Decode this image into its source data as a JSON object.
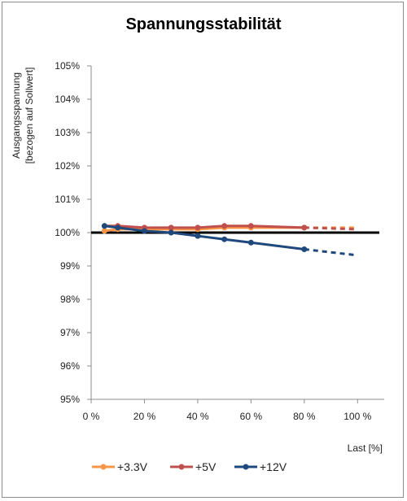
{
  "chart_data": {
    "type": "line",
    "title": "Spannungsstabilität",
    "ylabel_line1": "Ausgangsspannung",
    "ylabel_line2": "[bezogen auf Sollwert]",
    "xlabel": "Last [%]",
    "xlim": [
      0,
      110
    ],
    "ylim": [
      95,
      105
    ],
    "x_ticks": [
      0,
      20,
      40,
      60,
      80,
      100
    ],
    "x_tick_labels": [
      "0 %",
      "20 %",
      "40 %",
      "60 %",
      "80 %",
      "100 %"
    ],
    "y_ticks": [
      95,
      96,
      97,
      98,
      99,
      100,
      101,
      102,
      103,
      104,
      105
    ],
    "y_tick_labels": [
      "95%",
      "96%",
      "97%",
      "98%",
      "99%",
      "100%",
      "101%",
      "102%",
      "103%",
      "104%",
      "105%"
    ],
    "grid": false,
    "legend_position": "bottom",
    "reference_line": {
      "y": 100,
      "color": "#000000"
    },
    "series": [
      {
        "name": "+3.3V",
        "color": "#f79646",
        "x": [
          5,
          10,
          20,
          30,
          40,
          50,
          60,
          80
        ],
        "y": [
          100.05,
          100.1,
          100.1,
          100.1,
          100.1,
          100.15,
          100.15,
          100.15
        ],
        "projected": {
          "x": [
            80,
            100
          ],
          "y": [
            100.15,
            100.15
          ]
        }
      },
      {
        "name": "+5V",
        "color": "#c0504d",
        "x": [
          5,
          10,
          20,
          30,
          40,
          50,
          60,
          80
        ],
        "y": [
          100.2,
          100.2,
          100.15,
          100.15,
          100.15,
          100.2,
          100.2,
          100.15
        ],
        "projected": {
          "x": [
            80,
            100
          ],
          "y": [
            100.15,
            100.1
          ]
        }
      },
      {
        "name": "+12V",
        "color": "#1f497d",
        "x": [
          5,
          10,
          20,
          30,
          40,
          50,
          60,
          80
        ],
        "y": [
          100.2,
          100.15,
          100.05,
          100.0,
          99.9,
          99.8,
          99.7,
          99.5
        ],
        "projected": {
          "x": [
            80,
            100
          ],
          "y": [
            99.5,
            99.32
          ]
        }
      }
    ]
  }
}
